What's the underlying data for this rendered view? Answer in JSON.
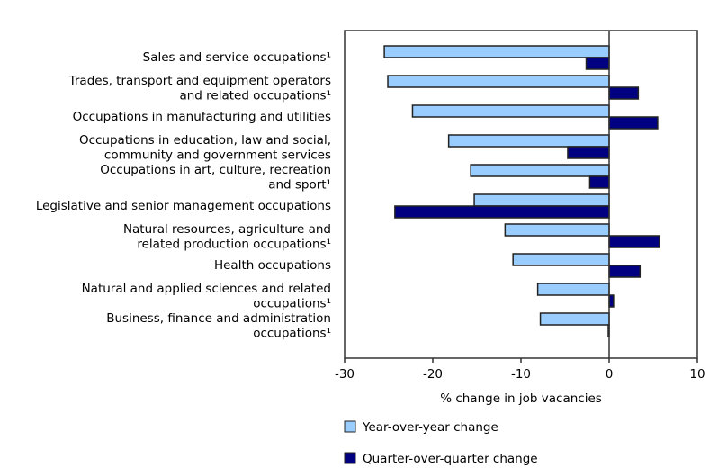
{
  "chart_data": {
    "type": "bar",
    "orientation": "horizontal",
    "xlabel": "% change in job vacancies",
    "xlim": [
      -30,
      10
    ],
    "xticks": [
      "-30",
      "-20",
      "-10",
      "0",
      "10"
    ],
    "grid": false,
    "legend_placement": "bottom",
    "categories": [
      [
        "Sales and service occupations¹"
      ],
      [
        "Trades, transport and equipment operators",
        "and related occupations¹"
      ],
      [
        "Occupations in manufacturing and utilities"
      ],
      [
        "Occupations in education, law and social,",
        "community and government services"
      ],
      [
        "Occupations in art, culture, recreation",
        "and sport¹"
      ],
      [
        "Legislative and senior management occupations"
      ],
      [
        "Natural resources, agriculture and",
        "related production occupations¹"
      ],
      [
        "Health occupations"
      ],
      [
        "Natural and applied sciences and related",
        "occupations¹"
      ],
      [
        "Business, finance and administration",
        "occupations¹"
      ]
    ],
    "series": [
      {
        "name": "Year-over-year change",
        "color": "#99ccff",
        "values": [
          -25.5,
          -25.1,
          -22.3,
          -18.2,
          -15.7,
          -15.3,
          -11.8,
          -10.9,
          -8.1,
          -7.8
        ]
      },
      {
        "name": "Quarter-over-quarter change",
        "color": "#000080",
        "values": [
          -2.6,
          3.3,
          5.5,
          -4.7,
          -2.2,
          -24.3,
          5.7,
          3.5,
          0.5,
          -0.1
        ]
      }
    ]
  }
}
